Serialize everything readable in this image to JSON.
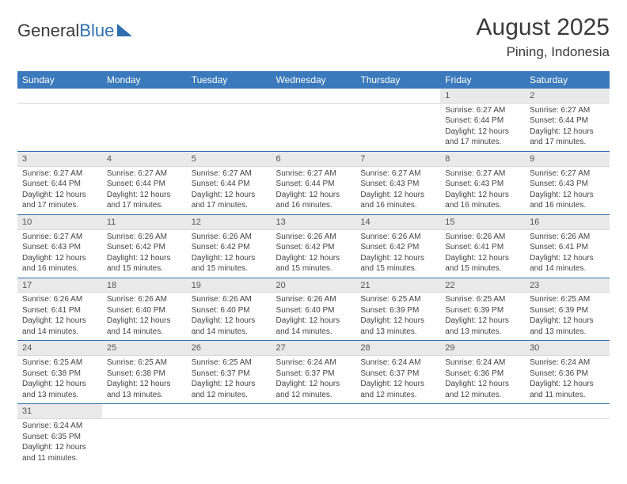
{
  "brand": {
    "part1": "General",
    "part2": "Blue"
  },
  "title": {
    "month": "August 2025",
    "location": "Pining, Indonesia"
  },
  "colors": {
    "header_bg": "#3a79bb",
    "header_text": "#ffffff",
    "daynum_bg": "#e9e9e9",
    "row_divider": "#2f6fb0",
    "text": "#444444",
    "background": "#ffffff"
  },
  "calendar": {
    "day_headers": [
      "Sunday",
      "Monday",
      "Tuesday",
      "Wednesday",
      "Thursday",
      "Friday",
      "Saturday"
    ],
    "weeks": [
      {
        "nums": [
          "",
          "",
          "",
          "",
          "",
          "1",
          "2"
        ],
        "cells": [
          null,
          null,
          null,
          null,
          null,
          {
            "sunrise": "Sunrise: 6:27 AM",
            "sunset": "Sunset: 6:44 PM",
            "day1": "Daylight: 12 hours",
            "day2": "and 17 minutes."
          },
          {
            "sunrise": "Sunrise: 6:27 AM",
            "sunset": "Sunset: 6:44 PM",
            "day1": "Daylight: 12 hours",
            "day2": "and 17 minutes."
          }
        ]
      },
      {
        "nums": [
          "3",
          "4",
          "5",
          "6",
          "7",
          "8",
          "9"
        ],
        "cells": [
          {
            "sunrise": "Sunrise: 6:27 AM",
            "sunset": "Sunset: 6:44 PM",
            "day1": "Daylight: 12 hours",
            "day2": "and 17 minutes."
          },
          {
            "sunrise": "Sunrise: 6:27 AM",
            "sunset": "Sunset: 6:44 PM",
            "day1": "Daylight: 12 hours",
            "day2": "and 17 minutes."
          },
          {
            "sunrise": "Sunrise: 6:27 AM",
            "sunset": "Sunset: 6:44 PM",
            "day1": "Daylight: 12 hours",
            "day2": "and 17 minutes."
          },
          {
            "sunrise": "Sunrise: 6:27 AM",
            "sunset": "Sunset: 6:44 PM",
            "day1": "Daylight: 12 hours",
            "day2": "and 16 minutes."
          },
          {
            "sunrise": "Sunrise: 6:27 AM",
            "sunset": "Sunset: 6:43 PM",
            "day1": "Daylight: 12 hours",
            "day2": "and 16 minutes."
          },
          {
            "sunrise": "Sunrise: 6:27 AM",
            "sunset": "Sunset: 6:43 PM",
            "day1": "Daylight: 12 hours",
            "day2": "and 16 minutes."
          },
          {
            "sunrise": "Sunrise: 6:27 AM",
            "sunset": "Sunset: 6:43 PM",
            "day1": "Daylight: 12 hours",
            "day2": "and 16 minutes."
          }
        ]
      },
      {
        "nums": [
          "10",
          "11",
          "12",
          "13",
          "14",
          "15",
          "16"
        ],
        "cells": [
          {
            "sunrise": "Sunrise: 6:27 AM",
            "sunset": "Sunset: 6:43 PM",
            "day1": "Daylight: 12 hours",
            "day2": "and 16 minutes."
          },
          {
            "sunrise": "Sunrise: 6:26 AM",
            "sunset": "Sunset: 6:42 PM",
            "day1": "Daylight: 12 hours",
            "day2": "and 15 minutes."
          },
          {
            "sunrise": "Sunrise: 6:26 AM",
            "sunset": "Sunset: 6:42 PM",
            "day1": "Daylight: 12 hours",
            "day2": "and 15 minutes."
          },
          {
            "sunrise": "Sunrise: 6:26 AM",
            "sunset": "Sunset: 6:42 PM",
            "day1": "Daylight: 12 hours",
            "day2": "and 15 minutes."
          },
          {
            "sunrise": "Sunrise: 6:26 AM",
            "sunset": "Sunset: 6:42 PM",
            "day1": "Daylight: 12 hours",
            "day2": "and 15 minutes."
          },
          {
            "sunrise": "Sunrise: 6:26 AM",
            "sunset": "Sunset: 6:41 PM",
            "day1": "Daylight: 12 hours",
            "day2": "and 15 minutes."
          },
          {
            "sunrise": "Sunrise: 6:26 AM",
            "sunset": "Sunset: 6:41 PM",
            "day1": "Daylight: 12 hours",
            "day2": "and 14 minutes."
          }
        ]
      },
      {
        "nums": [
          "17",
          "18",
          "19",
          "20",
          "21",
          "22",
          "23"
        ],
        "cells": [
          {
            "sunrise": "Sunrise: 6:26 AM",
            "sunset": "Sunset: 6:41 PM",
            "day1": "Daylight: 12 hours",
            "day2": "and 14 minutes."
          },
          {
            "sunrise": "Sunrise: 6:26 AM",
            "sunset": "Sunset: 6:40 PM",
            "day1": "Daylight: 12 hours",
            "day2": "and 14 minutes."
          },
          {
            "sunrise": "Sunrise: 6:26 AM",
            "sunset": "Sunset: 6:40 PM",
            "day1": "Daylight: 12 hours",
            "day2": "and 14 minutes."
          },
          {
            "sunrise": "Sunrise: 6:26 AM",
            "sunset": "Sunset: 6:40 PM",
            "day1": "Daylight: 12 hours",
            "day2": "and 14 minutes."
          },
          {
            "sunrise": "Sunrise: 6:25 AM",
            "sunset": "Sunset: 6:39 PM",
            "day1": "Daylight: 12 hours",
            "day2": "and 13 minutes."
          },
          {
            "sunrise": "Sunrise: 6:25 AM",
            "sunset": "Sunset: 6:39 PM",
            "day1": "Daylight: 12 hours",
            "day2": "and 13 minutes."
          },
          {
            "sunrise": "Sunrise: 6:25 AM",
            "sunset": "Sunset: 6:39 PM",
            "day1": "Daylight: 12 hours",
            "day2": "and 13 minutes."
          }
        ]
      },
      {
        "nums": [
          "24",
          "25",
          "26",
          "27",
          "28",
          "29",
          "30"
        ],
        "cells": [
          {
            "sunrise": "Sunrise: 6:25 AM",
            "sunset": "Sunset: 6:38 PM",
            "day1": "Daylight: 12 hours",
            "day2": "and 13 minutes."
          },
          {
            "sunrise": "Sunrise: 6:25 AM",
            "sunset": "Sunset: 6:38 PM",
            "day1": "Daylight: 12 hours",
            "day2": "and 13 minutes."
          },
          {
            "sunrise": "Sunrise: 6:25 AM",
            "sunset": "Sunset: 6:37 PM",
            "day1": "Daylight: 12 hours",
            "day2": "and 12 minutes."
          },
          {
            "sunrise": "Sunrise: 6:24 AM",
            "sunset": "Sunset: 6:37 PM",
            "day1": "Daylight: 12 hours",
            "day2": "and 12 minutes."
          },
          {
            "sunrise": "Sunrise: 6:24 AM",
            "sunset": "Sunset: 6:37 PM",
            "day1": "Daylight: 12 hours",
            "day2": "and 12 minutes."
          },
          {
            "sunrise": "Sunrise: 6:24 AM",
            "sunset": "Sunset: 6:36 PM",
            "day1": "Daylight: 12 hours",
            "day2": "and 12 minutes."
          },
          {
            "sunrise": "Sunrise: 6:24 AM",
            "sunset": "Sunset: 6:36 PM",
            "day1": "Daylight: 12 hours",
            "day2": "and 11 minutes."
          }
        ]
      },
      {
        "nums": [
          "31",
          "",
          "",
          "",
          "",
          "",
          ""
        ],
        "cells": [
          {
            "sunrise": "Sunrise: 6:24 AM",
            "sunset": "Sunset: 6:35 PM",
            "day1": "Daylight: 12 hours",
            "day2": "and 11 minutes."
          },
          null,
          null,
          null,
          null,
          null,
          null
        ]
      }
    ]
  }
}
